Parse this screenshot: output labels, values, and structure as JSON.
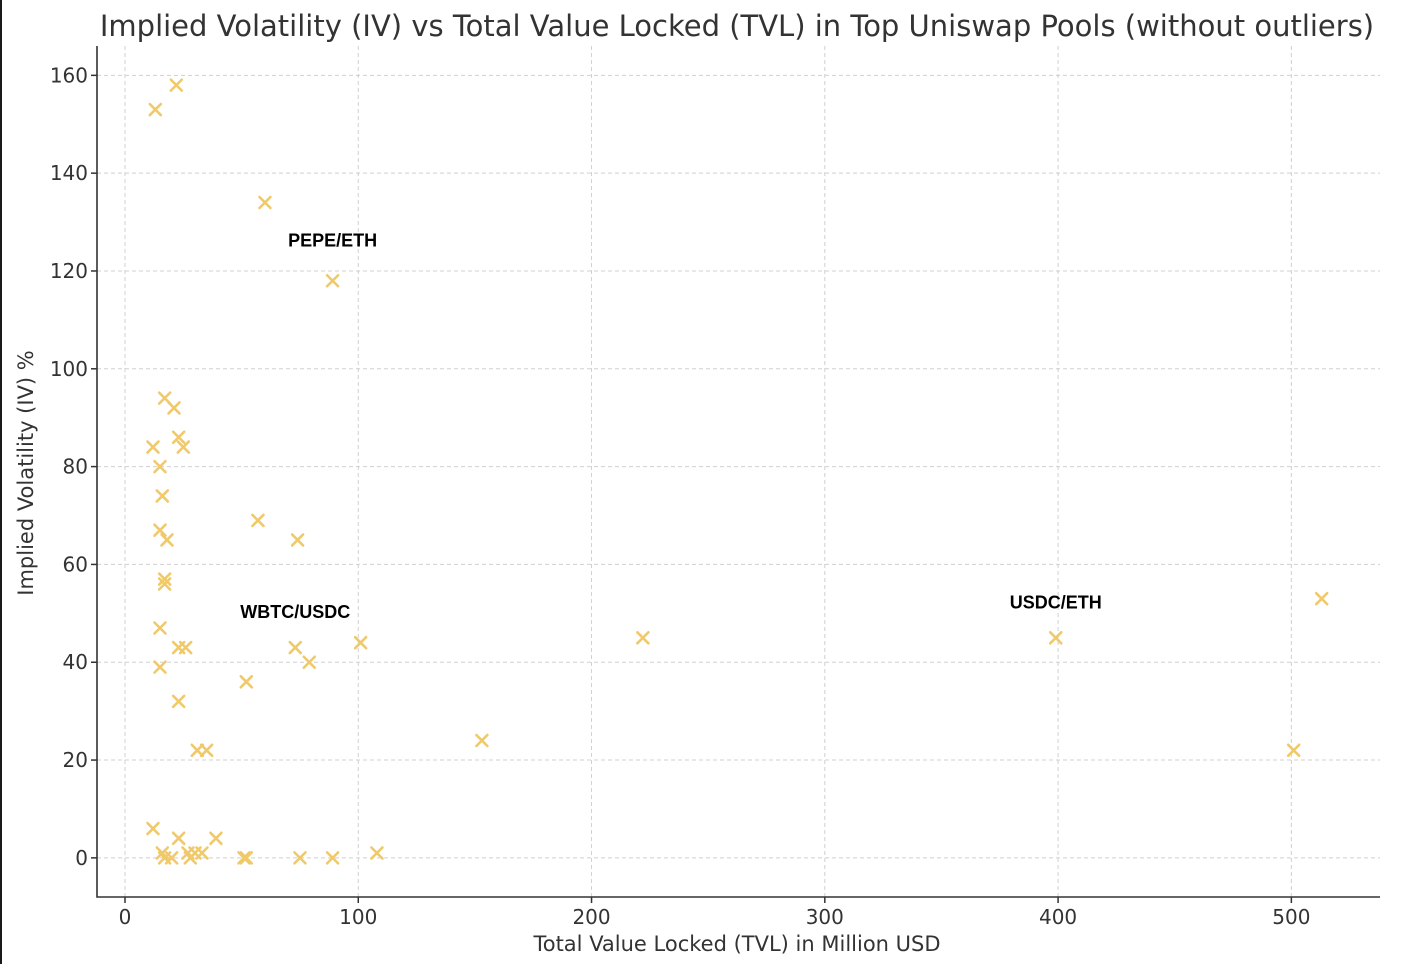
{
  "chart_data": {
    "type": "scatter",
    "title": "Implied Volatility (IV) vs Total Value Locked (TVL) in Top Uniswap Pools (without outliers)",
    "xlabel": "Total Value Locked (TVL) in Million USD",
    "ylabel": "Implied Volatility (IV) %",
    "xlim": [
      -12,
      538
    ],
    "ylim": [
      -8,
      166
    ],
    "xticks": [
      0,
      100,
      200,
      300,
      400,
      500
    ],
    "yticks": [
      0,
      20,
      40,
      60,
      80,
      100,
      120,
      140,
      160
    ],
    "grid": true,
    "marker": "x",
    "marker_color": "#f0c96a",
    "series": [
      {
        "points": [
          [
            22,
            158
          ],
          [
            13,
            153
          ],
          [
            60,
            134
          ],
          [
            89,
            118
          ],
          [
            17,
            94
          ],
          [
            21,
            92
          ],
          [
            23,
            86
          ],
          [
            12,
            84
          ],
          [
            25,
            84
          ],
          [
            15,
            80
          ],
          [
            16,
            74
          ],
          [
            57,
            69
          ],
          [
            15,
            67
          ],
          [
            18,
            65
          ],
          [
            74,
            65
          ],
          [
            17,
            57
          ],
          [
            17,
            56
          ],
          [
            15,
            47
          ],
          [
            23,
            43
          ],
          [
            26,
            43
          ],
          [
            73,
            43
          ],
          [
            79,
            40
          ],
          [
            101,
            44
          ],
          [
            222,
            45
          ],
          [
            399,
            45
          ],
          [
            513,
            53
          ],
          [
            15,
            39
          ],
          [
            52,
            36
          ],
          [
            23,
            32
          ],
          [
            31,
            22
          ],
          [
            35,
            22
          ],
          [
            153,
            24
          ],
          [
            501,
            22
          ],
          [
            12,
            6
          ],
          [
            23,
            4
          ],
          [
            39,
            4
          ],
          [
            16,
            1
          ],
          [
            17,
            0
          ],
          [
            20,
            0
          ],
          [
            27,
            1
          ],
          [
            28,
            0
          ],
          [
            30,
            1
          ],
          [
            33,
            1
          ],
          [
            51,
            0
          ],
          [
            52,
            0
          ],
          [
            75,
            0
          ],
          [
            89,
            0
          ],
          [
            108,
            1
          ]
        ]
      }
    ],
    "annotations": [
      {
        "text": "PEPE/ETH",
        "x": 89,
        "y": 125
      },
      {
        "text": "WBTC/USDC",
        "x": 73,
        "y": 49
      },
      {
        "text": "USDC/ETH",
        "x": 399,
        "y": 51
      }
    ]
  }
}
